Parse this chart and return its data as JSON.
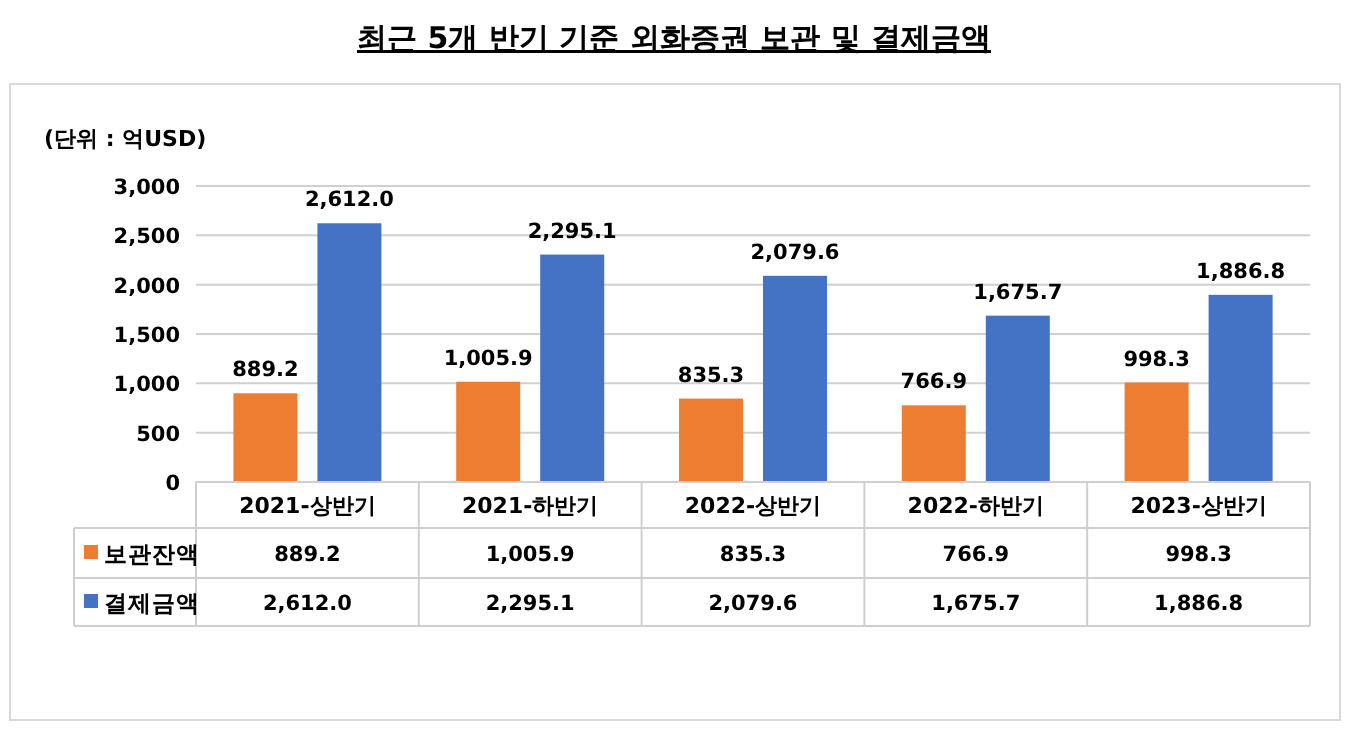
{
  "chart_data": {
    "type": "bar",
    "title": "최근 5개 반기 기준 외화증권 보관 및 결제금액",
    "ylabel": "(단위 : 억USD)",
    "categories": [
      "2021-상반기",
      "2021-하반기",
      "2022-상반기",
      "2022-하반기",
      "2023-상반기"
    ],
    "series": [
      {
        "name": "보관잔액",
        "color": "#ed7d31",
        "values": [
          889.2,
          1005.9,
          835.3,
          766.9,
          998.3
        ],
        "value_labels": [
          "889.2",
          "1,005.9",
          "835.3",
          "766.9",
          "998.3"
        ]
      },
      {
        "name": "결제금액",
        "color": "#4472c4",
        "values": [
          2612.0,
          2295.1,
          2079.6,
          1675.7,
          1886.8
        ],
        "value_labels": [
          "2,612.0",
          "2,295.1",
          "2,079.6",
          "1,675.7",
          "1,886.8"
        ]
      }
    ],
    "ylim": [
      0,
      3000
    ],
    "yticks": [
      {
        "value": 0,
        "label": "0"
      },
      {
        "value": 500,
        "label": "500"
      },
      {
        "value": 1000,
        "label": "1,000"
      },
      {
        "value": 1500,
        "label": "1,500"
      },
      {
        "value": 2000,
        "label": "2,000"
      },
      {
        "value": 2500,
        "label": "2,500"
      },
      {
        "value": 3000,
        "label": "3,000"
      }
    ],
    "grid": "y",
    "legend": "bottom"
  }
}
